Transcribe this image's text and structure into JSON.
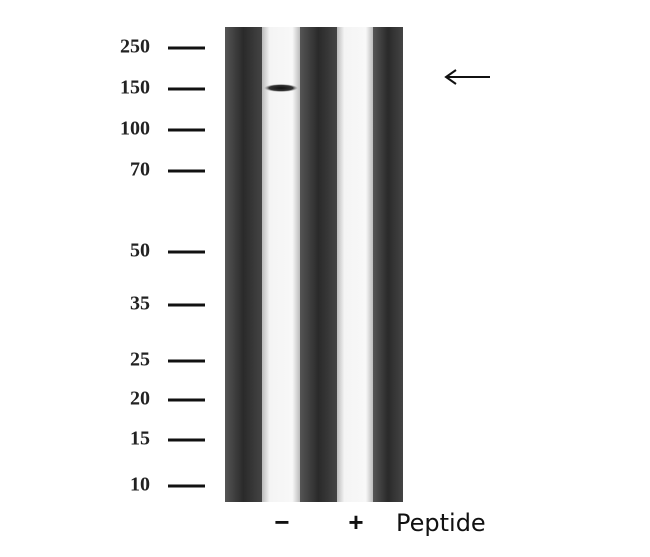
{
  "markers": [
    "250",
    "150",
    "100",
    "70",
    "50",
    "35",
    "25",
    "20",
    "15",
    "10"
  ],
  "lanes": [
    "−",
    "+"
  ],
  "lane_caption": "Peptide"
}
